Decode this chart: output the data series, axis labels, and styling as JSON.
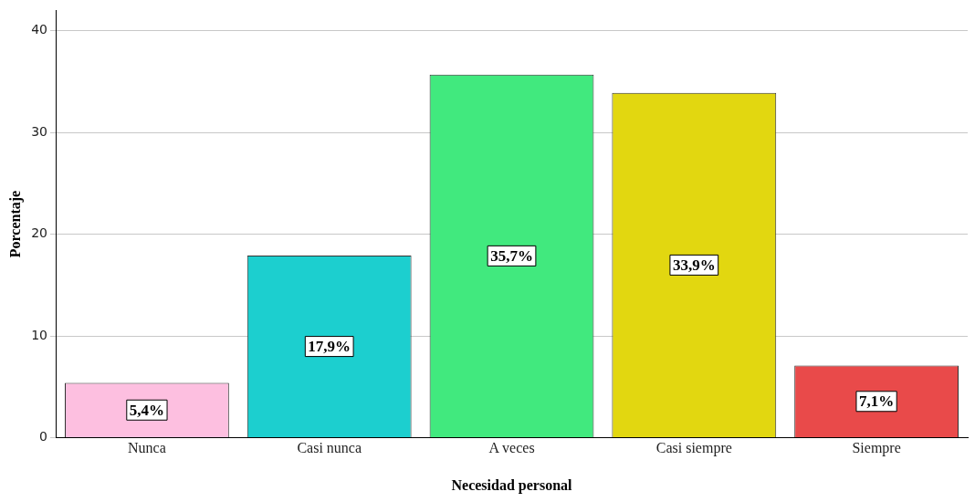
{
  "chart_data": {
    "type": "bar",
    "xlabel": "Necesidad personal",
    "ylabel": "Porcentaje",
    "categories": [
      "Nunca",
      "Casi nunca",
      "A veces",
      "Casi siempre",
      "Siempre"
    ],
    "values": [
      5.4,
      17.9,
      35.7,
      33.9,
      7.1
    ],
    "colors": [
      "#fdbfe0",
      "#1ccfcf",
      "#41e97e",
      "#e2d710",
      "#e94a4a"
    ],
    "value_labels": [
      "5,4%",
      "17,9%",
      "35,7%",
      "33,9%",
      "7,1%"
    ],
    "ylim": [
      0,
      42
    ],
    "yticks": [
      0,
      10,
      20,
      30,
      40
    ],
    "grid": "y",
    "legend": false
  }
}
